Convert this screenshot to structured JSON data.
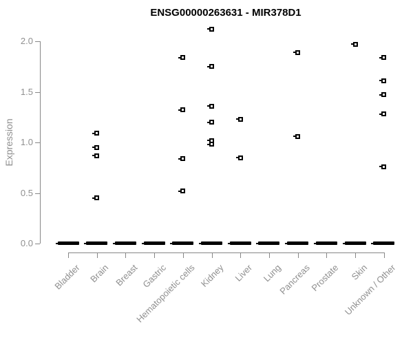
{
  "chart_data": {
    "type": "scatter",
    "title": "ENSG00000263631 - MIR378D1",
    "xlabel": "",
    "ylabel": "Expression",
    "ylim": [
      0.0,
      2.2
    ],
    "yticks": [
      0.0,
      0.5,
      1.0,
      1.5,
      2.0
    ],
    "ytick_labels": [
      "0.0",
      "0.5",
      "1.0",
      "1.5",
      "2.0"
    ],
    "grid": false,
    "legend_position": "none",
    "categories": [
      "Bladder",
      "Brain",
      "Breast",
      "Gastric",
      "Hematopoietic cells",
      "Kidney",
      "Liver",
      "Lung",
      "Pancreas",
      "Prostate",
      "Skin",
      "Unknown / Other"
    ],
    "series": [
      {
        "name": "Bladder",
        "values": [],
        "zero_cluster": true
      },
      {
        "name": "Brain",
        "values": [
          1.09,
          0.95,
          0.87,
          0.45
        ],
        "zero_cluster": true
      },
      {
        "name": "Breast",
        "values": [],
        "zero_cluster": true
      },
      {
        "name": "Gastric",
        "values": [],
        "zero_cluster": true
      },
      {
        "name": "Hematopoietic cells",
        "values": [
          1.84,
          1.32,
          0.84,
          0.52
        ],
        "zero_cluster": true
      },
      {
        "name": "Kidney",
        "values": [
          2.12,
          1.75,
          1.36,
          1.2,
          1.02,
          0.98
        ],
        "zero_cluster": true
      },
      {
        "name": "Liver",
        "values": [
          1.23,
          0.85
        ],
        "zero_cluster": true
      },
      {
        "name": "Lung",
        "values": [],
        "zero_cluster": true
      },
      {
        "name": "Pancreas",
        "values": [
          1.89,
          1.06
        ],
        "zero_cluster": true
      },
      {
        "name": "Prostate",
        "values": [],
        "zero_cluster": true
      },
      {
        "name": "Skin",
        "values": [
          1.97
        ],
        "zero_cluster": true
      },
      {
        "name": "Unknown / Other",
        "values": [
          1.84,
          1.61,
          1.47,
          1.28,
          0.76
        ],
        "zero_cluster": true
      }
    ],
    "colors": {
      "point": "#000000",
      "zero_cluster": "#000000",
      "axis_line": "#868686",
      "axis_text": "#8f8f8f",
      "title_text": "#000000",
      "background": "#ffffff"
    }
  }
}
